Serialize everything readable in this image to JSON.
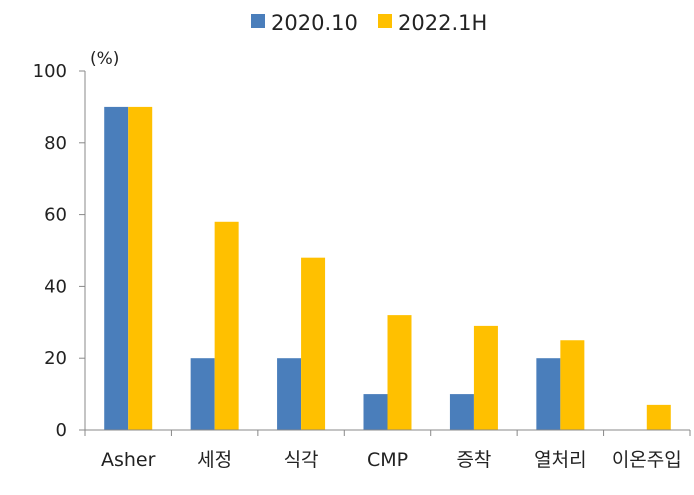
{
  "chart_data": {
    "type": "bar",
    "unit_label": "(%)",
    "categories": [
      "Asher",
      "세정",
      "식각",
      "CMP",
      "증착",
      "열처리",
      "이온주입"
    ],
    "series": [
      {
        "name": "2020.10",
        "color": "#4a7ebb",
        "values": [
          90,
          20,
          20,
          10,
          10,
          20,
          0
        ]
      },
      {
        "name": "2022.1H",
        "color": "#ffc000",
        "values": [
          90,
          58,
          48,
          32,
          29,
          25,
          7
        ]
      }
    ],
    "ylim": [
      0,
      100
    ],
    "yticks": [
      0,
      20,
      40,
      60,
      80,
      100
    ],
    "legend_position": "top",
    "grid": false
  }
}
